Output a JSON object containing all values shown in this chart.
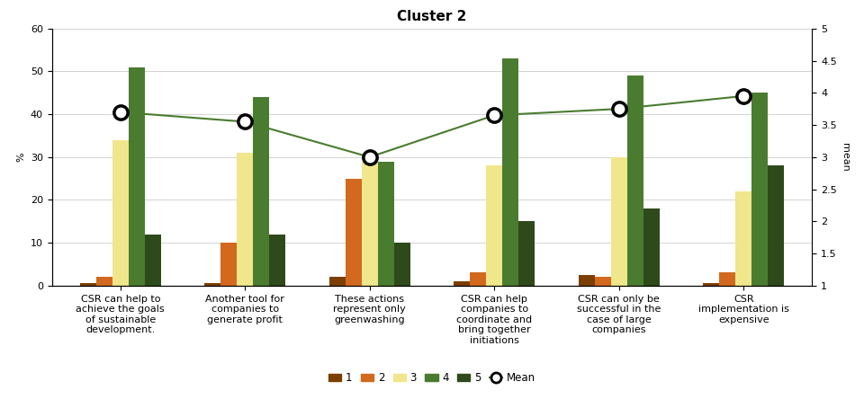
{
  "title": "Cluster 2",
  "categories": [
    "CSR can help to\nachieve the goals\nof sustainable\ndevelopment.",
    "Another tool for\ncompanies to\ngenerate profit",
    "These actions\nrepresent only\ngreenwashing",
    "CSR can help\ncompanies to\ncoordinate and\nbring together\ninitiations",
    "CSR can only be\nsuccessful in the\ncase of large\ncompanies",
    "CSR\nimplementation is\nexpensive"
  ],
  "bar_data": {
    "1": [
      0.5,
      0.5,
      2,
      1,
      2.5,
      0.5
    ],
    "2": [
      2,
      10,
      25,
      3,
      2,
      3
    ],
    "3": [
      34,
      31,
      30,
      28,
      30,
      22
    ],
    "4": [
      51,
      44,
      29,
      53,
      49,
      45
    ],
    "5": [
      12,
      12,
      10,
      15,
      18,
      28
    ]
  },
  "mean_values": [
    3.7,
    3.55,
    3.0,
    3.65,
    3.75,
    3.95
  ],
  "colors": {
    "1": "#7B3F00",
    "2": "#D2691E",
    "3": "#F0E68C",
    "4": "#4A7C2F",
    "5": "#2E4A1A"
  },
  "mean_line_color": "#4A7C2F",
  "mean_marker_facecolor": "white",
  "mean_marker_edgecolor": "black",
  "ylim_left": [
    0,
    60
  ],
  "ylim_right": [
    1,
    5
  ],
  "ylabel_left": "%",
  "ylabel_right": "mean",
  "background_color": "#FFFFFF",
  "title_fontsize": 11,
  "axis_fontsize": 8,
  "legend_fontsize": 8.5,
  "bar_width": 0.13,
  "right_ticks": [
    1,
    1.5,
    2,
    2.5,
    3,
    3.5,
    4,
    4.5,
    5
  ],
  "left_ticks": [
    0,
    10,
    20,
    30,
    40,
    50,
    60
  ]
}
